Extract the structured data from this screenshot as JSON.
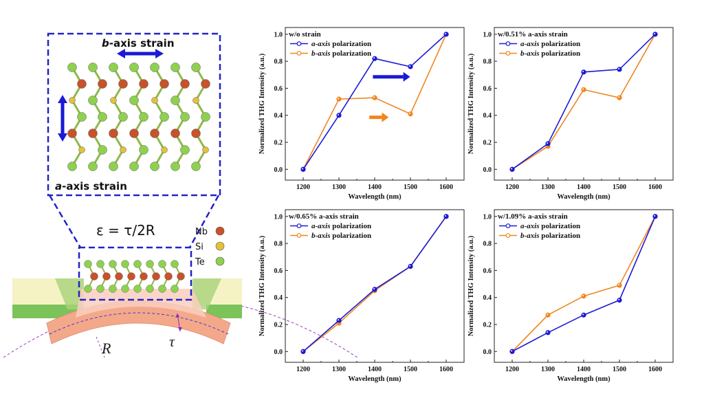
{
  "illustration": {
    "b_axis_label": "b-axis strain",
    "b_axis_italic": "b",
    "b_axis_rest": "-axis strain",
    "a_axis_italic": "a",
    "a_axis_rest": "-axis strain",
    "formula": "ε = τ/2R",
    "legend": [
      {
        "symbol": "Nb",
        "color": "#c8522a"
      },
      {
        "symbol": "Si",
        "color": "#e2c23a"
      },
      {
        "symbol": "Te",
        "color": "#8fd14f"
      }
    ],
    "R_label": "R",
    "tau_label": "τ"
  },
  "colors": {
    "a_axis": "#1a1ad6",
    "b_axis": "#f0861e",
    "dashed_box": "#2323c8",
    "substrate_layer": "#f4a88a",
    "green_film": "#7cc35a",
    "yellow_film": "#f5f3c4"
  },
  "axis_text": {
    "ylabel": "Normalized THG Intensity (a.u.)",
    "xlabel": "Wavelength (nm)"
  },
  "chart_data": [
    {
      "type": "line",
      "title": "w/o strain",
      "xlabel": "Wavelength (nm)",
      "ylabel": "Normalized THG Intensity (a.u.)",
      "x": [
        1200,
        1300,
        1400,
        1500,
        1600
      ],
      "xlim": [
        1150,
        1650
      ],
      "ylim": [
        -0.08,
        1.05
      ],
      "yticks": [
        0.0,
        0.2,
        0.4,
        0.6,
        0.8,
        1.0
      ],
      "series": [
        {
          "name": "a-axis polarization",
          "italic": "a-axis",
          "rest": " polarization",
          "values": [
            0.0,
            0.4,
            0.82,
            0.76,
            1.0
          ]
        },
        {
          "name": "b-axis polarization",
          "italic": "b-axis",
          "rest": " polarization",
          "values": [
            0.0,
            0.52,
            0.53,
            0.41,
            1.0
          ]
        }
      ],
      "annotations": [
        "blue arrow",
        "orange arrow"
      ]
    },
    {
      "type": "line",
      "title": "w/0.51% a-axis strain",
      "xlabel": "Wavelength (nm)",
      "ylabel": "Normalized THG Intensity (a.u.)",
      "x": [
        1200,
        1300,
        1400,
        1500,
        1600
      ],
      "xlim": [
        1150,
        1650
      ],
      "ylim": [
        -0.08,
        1.05
      ],
      "yticks": [
        0.0,
        0.2,
        0.4,
        0.6,
        0.8,
        1.0
      ],
      "series": [
        {
          "name": "a-axis polarization",
          "italic": "a-axis",
          "rest": " polarization",
          "values": [
            0.0,
            0.19,
            0.72,
            0.74,
            1.0
          ]
        },
        {
          "name": "b-axis polarization",
          "italic": "b-axis",
          "rest": " polarization",
          "values": [
            0.0,
            0.17,
            0.59,
            0.53,
            1.0
          ]
        }
      ]
    },
    {
      "type": "line",
      "title": "w/0.65% a-axis strain",
      "xlabel": "Wavelength (nm)",
      "ylabel": "Normalized THG Intensity (a.u.)",
      "x": [
        1200,
        1300,
        1400,
        1500,
        1600
      ],
      "xlim": [
        1150,
        1650
      ],
      "ylim": [
        -0.08,
        1.05
      ],
      "yticks": [
        0.0,
        0.2,
        0.4,
        0.6,
        0.8,
        1.0
      ],
      "series": [
        {
          "name": "a-axis polarization",
          "italic": "a-axis",
          "rest": " polarization",
          "values": [
            0.0,
            0.23,
            0.46,
            0.63,
            1.0
          ]
        },
        {
          "name": "b-axis polarization",
          "italic": "b-axis",
          "rest": " polarization",
          "values": [
            0.0,
            0.21,
            0.45,
            0.63,
            1.0
          ]
        }
      ]
    },
    {
      "type": "line",
      "title": "w/1.09% a-axis strain",
      "xlabel": "Wavelength (nm)",
      "ylabel": "Normalized THG Intensity (a.u.)",
      "x": [
        1200,
        1300,
        1400,
        1500,
        1600
      ],
      "xlim": [
        1150,
        1650
      ],
      "ylim": [
        -0.08,
        1.05
      ],
      "yticks": [
        0.0,
        0.2,
        0.4,
        0.6,
        0.8,
        1.0
      ],
      "series": [
        {
          "name": "a-axis polarization",
          "italic": "a-axis",
          "rest": " polarization",
          "values": [
            0.0,
            0.14,
            0.27,
            0.38,
            1.0
          ]
        },
        {
          "name": "b-axis polarization",
          "italic": "b-axis",
          "rest": " polarization",
          "values": [
            0.0,
            0.27,
            0.41,
            0.49,
            1.0
          ]
        }
      ]
    }
  ]
}
